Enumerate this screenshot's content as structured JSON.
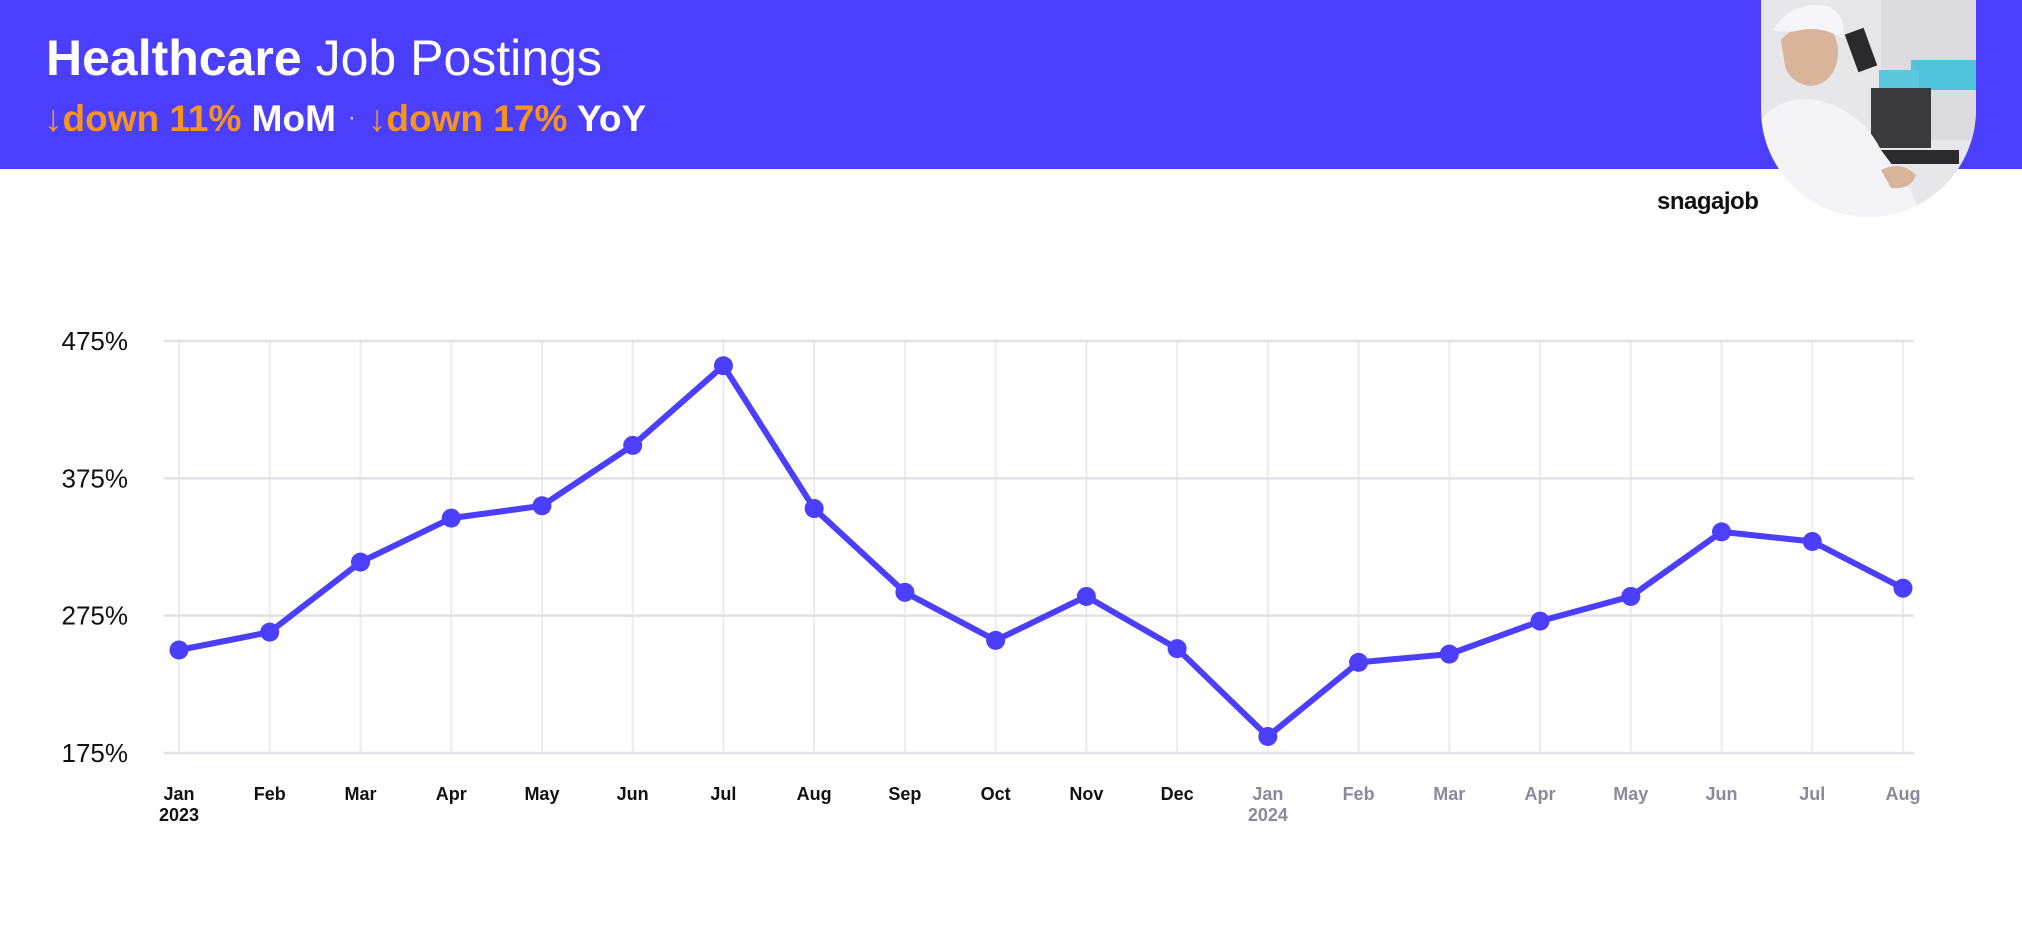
{
  "header": {
    "title_bold": "Healthcare",
    "title_rest": "Job Postings",
    "mom": {
      "arrow": "↓",
      "change": "down 11%",
      "period": "MoM"
    },
    "separator": "·",
    "yoy": {
      "arrow": "↓",
      "change": "down 17%",
      "period": "YoY"
    },
    "background_color": "#4B3EFC",
    "accent_color": "#F7941D",
    "photo_icon": "lab-technician-microscope-photo"
  },
  "brand": {
    "name": "snagajob"
  },
  "chart_data": {
    "type": "line",
    "x": [
      "Jan",
      "Feb",
      "Mar",
      "Apr",
      "May",
      "Jun",
      "Jul",
      "Aug",
      "Sep",
      "Oct",
      "Nov",
      "Dec",
      "Jan",
      "Feb",
      "Mar",
      "Apr",
      "May",
      "Jun",
      "Jul",
      "Aug"
    ],
    "year_labels": [
      {
        "index": 0,
        "label": "2023"
      },
      {
        "index": 12,
        "label": "2024"
      }
    ],
    "series": [
      {
        "values": [
          250,
          263,
          314,
          346,
          355,
          399,
          457,
          353,
          292,
          257,
          289,
          251,
          187,
          241,
          247,
          271,
          289,
          336,
          329,
          295
        ]
      }
    ],
    "y_ticks": [
      "175%",
      "275%",
      "375%",
      "475%"
    ],
    "ylim": [
      175,
      475
    ],
    "title": "",
    "xlabel": "",
    "ylabel": "",
    "grid": true,
    "line_color": "#4B3EFC",
    "label_color_2023": "#111111",
    "label_color_2024": "#8A8A99"
  }
}
